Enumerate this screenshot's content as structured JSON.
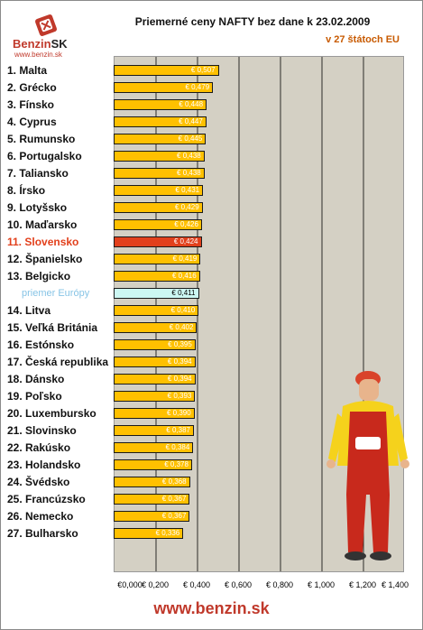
{
  "logo": {
    "brand": "Benzin",
    "brand_suffix": "SK",
    "url": "www.benzin.sk"
  },
  "footer": {
    "url": "www.benzin.sk"
  },
  "colors": {
    "bar": "#ffc000",
    "highlight_bar": "#e2401c",
    "average_bar": "#ccf7f2",
    "highlight_text": "#e2401c",
    "average_text": "#87c4e6",
    "plot_bg": "#d4d0c4",
    "subtitle": "#c85a00"
  },
  "chart_data": {
    "type": "bar",
    "orientation": "horizontal",
    "title": "Priemerné ceny NAFTY bez dane k 23.02.2009",
    "subtitle": "v 27 štátoch EU",
    "categories": [
      "1. Malta",
      "2. Grécko",
      "3. Fínsko",
      "4. Cyprus",
      "5. Rumunsko",
      "6. Portugalsko",
      "7. Taliansko",
      "8. Írsko",
      "9. Lotyšsko",
      "10. Maďarsko",
      "11. Slovensko",
      "12. Španielsko",
      "13. Belgicko",
      "priemer Európy",
      "14. Litva",
      "15. Veľká Británia",
      "16. Estónsko",
      "17. Česká republika",
      "18. Dánsko",
      "19. Poľsko",
      "20. Luxembursko",
      "21. Slovinsko",
      "22. Rakúsko",
      "23. Holandsko",
      "24. Švédsko",
      "25. Francúzsko",
      "26. Nemecko",
      "27. Bulharsko"
    ],
    "values": [
      0.507,
      0.479,
      0.448,
      0.447,
      0.445,
      0.438,
      0.438,
      0.431,
      0.429,
      0.426,
      0.424,
      0.419,
      0.416,
      0.411,
      0.41,
      0.402,
      0.395,
      0.394,
      0.394,
      0.393,
      0.39,
      0.387,
      0.384,
      0.378,
      0.368,
      0.367,
      0.367,
      0.336
    ],
    "value_labels": [
      "€ 0,507",
      "€ 0,479",
      "€ 0,448",
      "€ 0,447",
      "€ 0,445",
      "€ 0,438",
      "€ 0,438",
      "€ 0,431",
      "€ 0,429",
      "€ 0,426",
      "€ 0,424",
      "€ 0,419",
      "€ 0,416",
      "€ 0,411",
      "€ 0,410",
      "€ 0,402",
      "€ 0,395",
      "€ 0,394",
      "€ 0,394",
      "€ 0,393",
      "€ 0,390",
      "€ 0,387",
      "€ 0,384",
      "€ 0,378",
      "€ 0,368",
      "€ 0,367",
      "€ 0,367",
      "€ 0,336"
    ],
    "highlight_category": "11. Slovensko",
    "average_category": "priemer Európy",
    "xlim": [
      0,
      1.4
    ],
    "x_ticks": [
      0,
      0.2,
      0.4,
      0.6,
      0.8,
      1.0,
      1.2,
      1.4
    ],
    "x_tick_labels": [
      "€0,000",
      "€ 0,200",
      "€ 0,400",
      "€ 0,600",
      "€ 0,800",
      "€ 1,000",
      "€ 1,200",
      "€ 1,400"
    ],
    "grid": true
  }
}
